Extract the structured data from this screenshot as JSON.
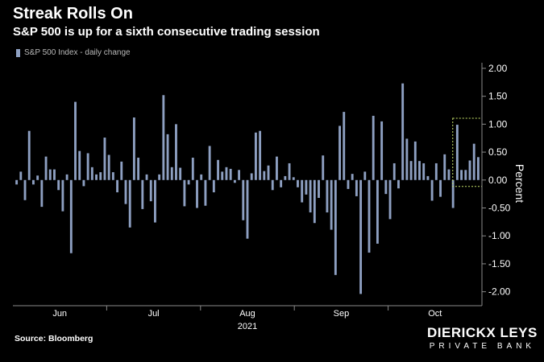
{
  "header": {
    "title": "Streak Rolls On",
    "subtitle": "S&P 500 is up for a sixth consecutive trading session"
  },
  "legend": {
    "label": "S&P 500 Index - daily change"
  },
  "footer": {
    "source": "Source: Bloomberg"
  },
  "brand": {
    "line1": "DIERICKX LEYS",
    "line2": "PRIVATE BANK"
  },
  "colors": {
    "bar": "#8ea0c2",
    "highlight": "#c7e36a",
    "background": "#000000",
    "axis": "#8a8a8a",
    "text": "#ffffff"
  },
  "chart_data": {
    "type": "bar",
    "ylabel": "Percent",
    "year_label": "2021",
    "ylim": [
      -2.25,
      2.1
    ],
    "yticks": [
      2.0,
      1.5,
      1.0,
      0.5,
      0.0,
      -0.5,
      -1.0,
      -1.5,
      -2.0
    ],
    "ytick_labels": [
      "2.00",
      "1.50",
      "1.00",
      "0.50",
      "0.00",
      "-0.50",
      "-1.00",
      "-1.50",
      "-2.00"
    ],
    "month_labels": [
      "Jun",
      "Jul",
      "Aug",
      "Sep",
      "Oct"
    ],
    "highlight_last_n": 6,
    "series": [
      {
        "values": [
          -0.08,
          0.15,
          -0.36,
          0.88,
          -0.08,
          0.08,
          -0.48,
          0.42,
          0.19,
          0.19,
          -0.18,
          -0.56,
          0.1,
          -1.31,
          1.4,
          0.52,
          -0.11,
          0.48,
          0.23,
          0.1,
          0.14,
          0.76,
          0.45,
          0.14,
          -0.22,
          0.33,
          -0.43,
          -0.85,
          1.12,
          0.4,
          -0.52,
          0.1,
          -0.38,
          -0.76,
          0.1,
          1.52,
          0.82,
          0.23,
          1.0,
          0.22,
          -0.47,
          -0.08,
          0.4,
          -0.5,
          0.1,
          -0.46,
          0.61,
          -0.22,
          0.36,
          0.15,
          0.23,
          0.2,
          -0.05,
          0.18,
          -0.72,
          -1.05,
          0.12,
          0.85,
          0.88,
          0.16,
          0.26,
          -0.18,
          0.42,
          -0.13,
          0.07,
          0.3,
          0.05,
          -0.13,
          -0.4,
          -0.26,
          -0.58,
          -0.77,
          -0.32,
          0.44,
          -0.58,
          -0.89,
          -1.7,
          0.97,
          1.22,
          -0.16,
          0.11,
          -0.29,
          -2.04,
          0.15,
          -1.3,
          1.15,
          -1.14,
          1.05,
          -0.25,
          -0.7,
          0.3,
          -0.15,
          1.73,
          0.74,
          0.34,
          0.69,
          0.34,
          0.3,
          0.07,
          -0.37,
          0.3,
          -0.3,
          0.46,
          0.19,
          -0.5,
          0.99,
          0.18,
          0.18,
          0.35,
          0.65,
          0.41
        ]
      }
    ]
  }
}
